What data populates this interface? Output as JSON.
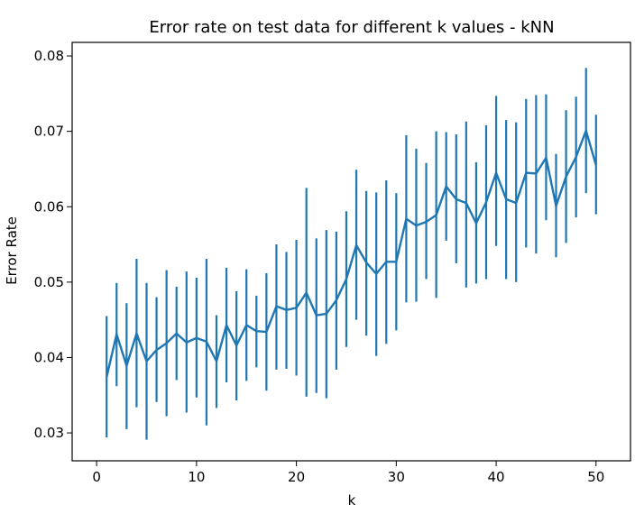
{
  "chart_data": {
    "type": "line",
    "title": "Error rate on test data for different k values - kNN",
    "xlabel": "k",
    "ylabel": "Error Rate",
    "xlim": [
      -2.45,
      53.45
    ],
    "ylim": [
      0.0263,
      0.0818
    ],
    "x_ticks": [
      0,
      10,
      20,
      30,
      40,
      50
    ],
    "y_ticks": [
      0.03,
      0.04,
      0.05,
      0.06,
      0.07,
      0.08
    ],
    "x_tick_labels": [
      "0",
      "10",
      "20",
      "30",
      "40",
      "50"
    ],
    "y_tick_labels": [
      "0.03",
      "0.04",
      "0.05",
      "0.06",
      "0.07",
      "0.08"
    ],
    "grid": false,
    "legend": "none",
    "series": [
      {
        "color": "#1f77b4",
        "x": [
          1,
          2,
          3,
          4,
          5,
          6,
          7,
          8,
          9,
          10,
          11,
          12,
          13,
          14,
          15,
          16,
          17,
          18,
          19,
          20,
          21,
          22,
          23,
          24,
          25,
          26,
          27,
          28,
          29,
          30,
          31,
          32,
          33,
          34,
          35,
          36,
          37,
          38,
          39,
          40,
          41,
          42,
          43,
          44,
          45,
          46,
          47,
          48,
          49,
          50
        ],
        "y": [
          0.0374,
          0.0431,
          0.0389,
          0.0432,
          0.0395,
          0.041,
          0.0419,
          0.0432,
          0.042,
          0.0426,
          0.0421,
          0.0395,
          0.0443,
          0.0416,
          0.0443,
          0.0435,
          0.0434,
          0.0468,
          0.0463,
          0.0466,
          0.0486,
          0.0456,
          0.0458,
          0.0476,
          0.0504,
          0.0549,
          0.0526,
          0.0511,
          0.0527,
          0.0527,
          0.0584,
          0.0575,
          0.058,
          0.0589,
          0.0627,
          0.061,
          0.0605,
          0.0578,
          0.0606,
          0.0645,
          0.061,
          0.0605,
          0.0645,
          0.0644,
          0.0665,
          0.0601,
          0.064,
          0.0666,
          0.0701,
          0.0655
        ],
        "yerr_low": [
          0.0294,
          0.0362,
          0.0305,
          0.0334,
          0.0291,
          0.0341,
          0.0322,
          0.037,
          0.0327,
          0.0347,
          0.031,
          0.0333,
          0.0367,
          0.0343,
          0.0369,
          0.0387,
          0.0356,
          0.0384,
          0.0385,
          0.0376,
          0.0348,
          0.0353,
          0.0346,
          0.0384,
          0.0414,
          0.045,
          0.0429,
          0.0402,
          0.0418,
          0.0436,
          0.0473,
          0.0474,
          0.0504,
          0.0479,
          0.0555,
          0.0525,
          0.0493,
          0.0498,
          0.0504,
          0.0548,
          0.0504,
          0.05,
          0.0546,
          0.0538,
          0.0582,
          0.0533,
          0.0552,
          0.0586,
          0.0618,
          0.059
        ],
        "yerr_high": [
          0.0455,
          0.0499,
          0.0472,
          0.0531,
          0.0499,
          0.048,
          0.0516,
          0.0494,
          0.0514,
          0.0506,
          0.0531,
          0.0456,
          0.0519,
          0.0488,
          0.0517,
          0.0482,
          0.0512,
          0.055,
          0.054,
          0.0556,
          0.0625,
          0.0558,
          0.0569,
          0.0567,
          0.0594,
          0.0649,
          0.0621,
          0.0619,
          0.0635,
          0.0618,
          0.0695,
          0.0677,
          0.0658,
          0.07,
          0.0699,
          0.0696,
          0.0713,
          0.0659,
          0.0708,
          0.0747,
          0.0715,
          0.0712,
          0.0743,
          0.0748,
          0.0749,
          0.067,
          0.0728,
          0.0746,
          0.0784,
          0.0722
        ]
      }
    ]
  }
}
